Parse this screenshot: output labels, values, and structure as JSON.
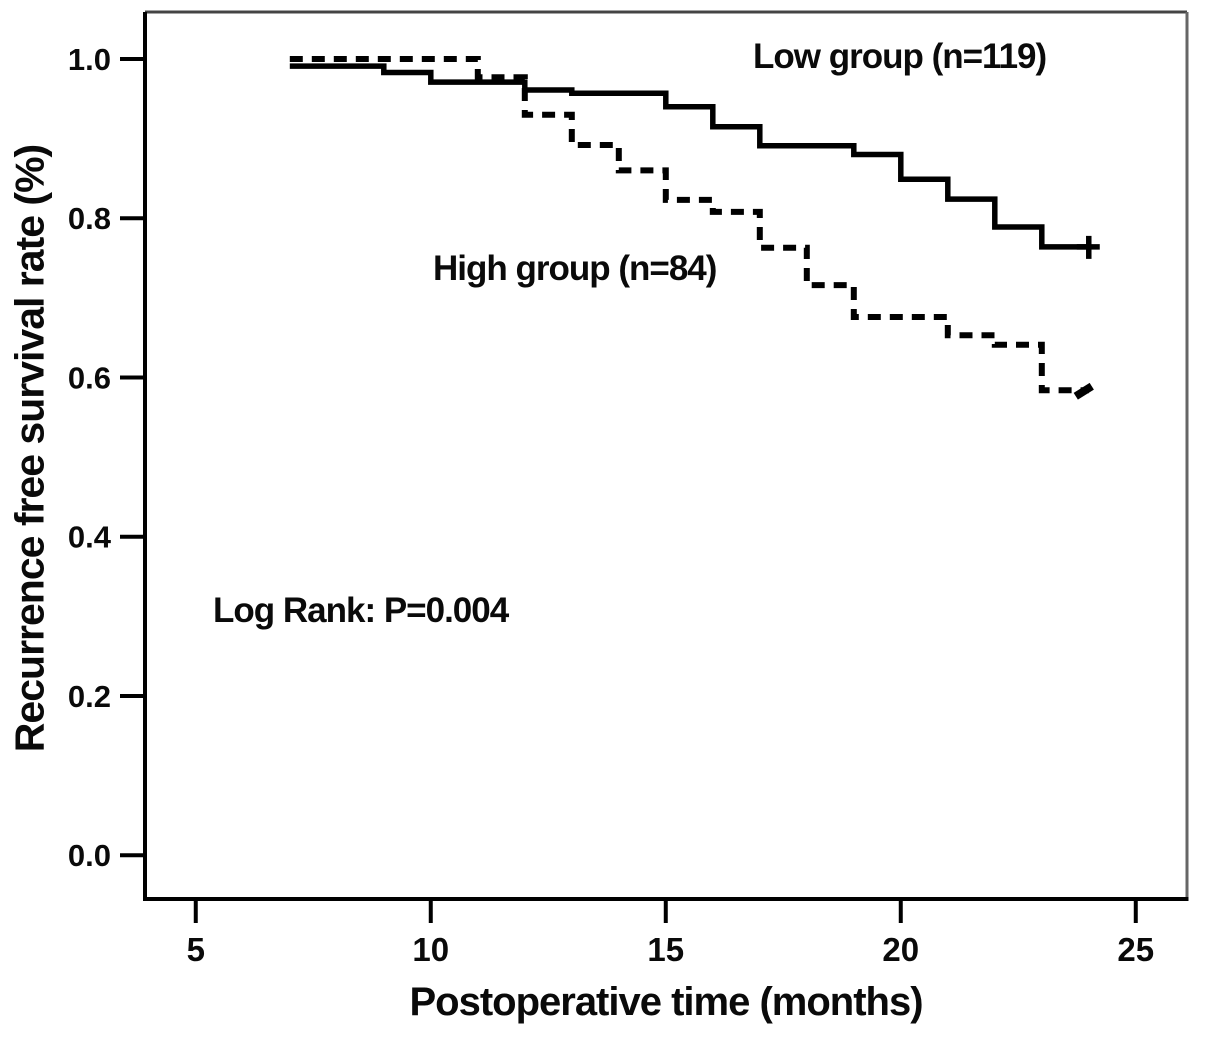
{
  "figure": {
    "background": "#ffffff",
    "ink_color": "#000000",
    "frame_color": "#666666"
  },
  "chart_data": {
    "type": "line",
    "subtype": "kaplan-meier-step-curve",
    "title": "",
    "xlabel": "Postoperative time (months)",
    "ylabel": "Recurrence free survival rate (%)",
    "xlim": [
      3.92,
      26.09
    ],
    "ylim": [
      -0.055,
      1.059
    ],
    "x_ticks": [
      5,
      10,
      15,
      20,
      25
    ],
    "x_tick_labels": [
      "5",
      "10",
      "15",
      "20",
      "25"
    ],
    "y_ticks": [
      0.0,
      0.2,
      0.4,
      0.6,
      0.8,
      1.0
    ],
    "y_tick_labels": [
      "0.0",
      "0.2",
      "0.4",
      "0.6",
      "0.8",
      "1.0"
    ],
    "grid": false,
    "legend_position": "inline-text-annotations",
    "annotation": "Log Rank: P=0.004",
    "series": [
      {
        "name": "Low group (n=119)",
        "line_style": "solid",
        "color": "#000000",
        "points": [
          [
            7,
            0.991
          ],
          [
            9,
            0.983
          ],
          [
            10,
            0.971
          ],
          [
            12,
            0.961
          ],
          [
            13,
            0.957
          ],
          [
            15,
            0.94
          ],
          [
            16,
            0.915
          ],
          [
            17,
            0.891
          ],
          [
            19,
            0.88
          ],
          [
            20,
            0.849
          ],
          [
            21,
            0.824
          ],
          [
            22,
            0.789
          ],
          [
            23,
            0.764
          ],
          [
            24,
            0.764
          ]
        ],
        "censor_marks": [
          [
            24,
            0.764
          ]
        ],
        "censor_style": "plus"
      },
      {
        "name": "High group (n=84)",
        "line_style": "dashed",
        "color": "#000000",
        "points": [
          [
            7,
            1.0
          ],
          [
            11,
            0.977
          ],
          [
            12,
            0.93
          ],
          [
            13,
            0.892
          ],
          [
            14,
            0.86
          ],
          [
            15,
            0.823
          ],
          [
            16,
            0.808
          ],
          [
            17,
            0.763
          ],
          [
            18,
            0.716
          ],
          [
            19,
            0.676
          ],
          [
            21,
            0.653
          ],
          [
            22,
            0.641
          ],
          [
            23,
            0.584
          ],
          [
            24,
            0.584
          ]
        ],
        "censor_marks": [
          [
            24,
            0.584
          ]
        ],
        "censor_style": "tick"
      }
    ]
  }
}
